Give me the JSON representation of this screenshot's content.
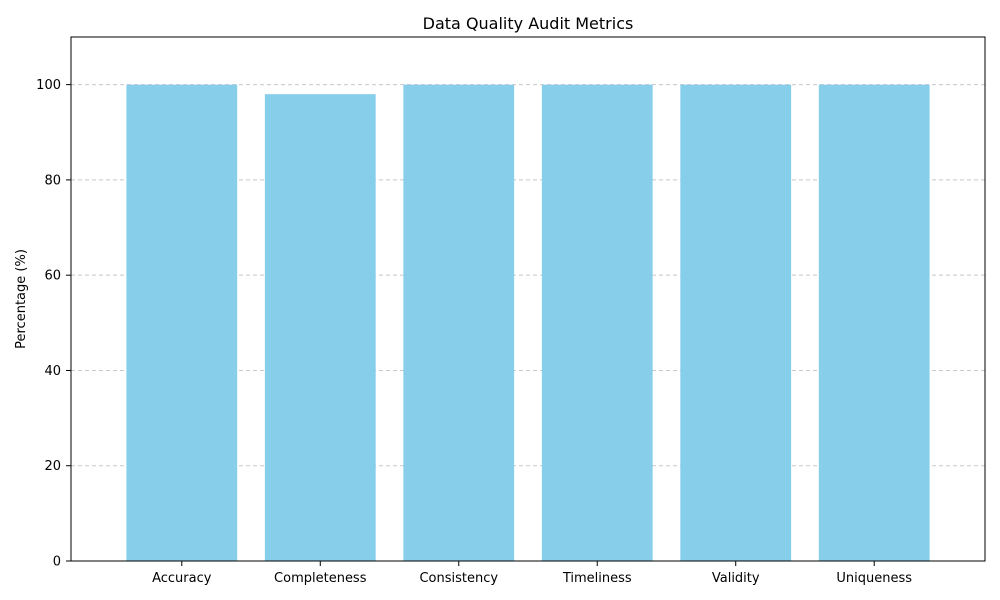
{
  "chart_data": {
    "type": "bar",
    "title": "Data Quality Audit Metrics",
    "xlabel": "",
    "ylabel": "Percentage (%)",
    "categories": [
      "Accuracy",
      "Completeness",
      "Consistency",
      "Timeliness",
      "Validity",
      "Uniqueness"
    ],
    "values": [
      100,
      98,
      100,
      100,
      100,
      100
    ],
    "ylim": [
      0,
      110
    ],
    "yticks": [
      0,
      20,
      40,
      60,
      80,
      100
    ],
    "grid": {
      "y": true,
      "x": false,
      "style": "dashed"
    },
    "colors": {
      "bar": "#87ceeb",
      "grid": "#c8c8c8",
      "axis": "#000000"
    }
  }
}
